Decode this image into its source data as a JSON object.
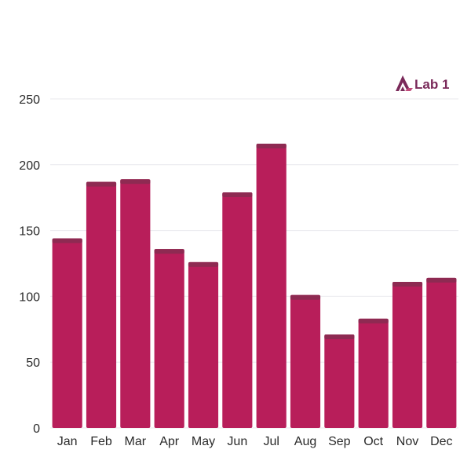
{
  "brand": {
    "name": "Lab 1",
    "logo_color": "#7a2a5a",
    "icon": "lab-logo-icon"
  },
  "chart_data": {
    "type": "bar",
    "categories": [
      "Jan",
      "Feb",
      "Mar",
      "Apr",
      "May",
      "Jun",
      "Jul",
      "Aug",
      "Sep",
      "Oct",
      "Nov",
      "Dec"
    ],
    "values": [
      144,
      187,
      189,
      136,
      126,
      179,
      216,
      101,
      71,
      83,
      111,
      114
    ],
    "title": "",
    "xlabel": "",
    "ylabel": "",
    "ylim": [
      0,
      250
    ],
    "yticks": [
      0,
      50,
      100,
      150,
      200,
      250
    ],
    "grid": true,
    "legend": "none",
    "colors": {
      "bar_fill": "#b81e5a",
      "bar_cap": "#8e2a52",
      "grid": "#e9e9ee",
      "axis_text": "#2a2a2a"
    }
  }
}
